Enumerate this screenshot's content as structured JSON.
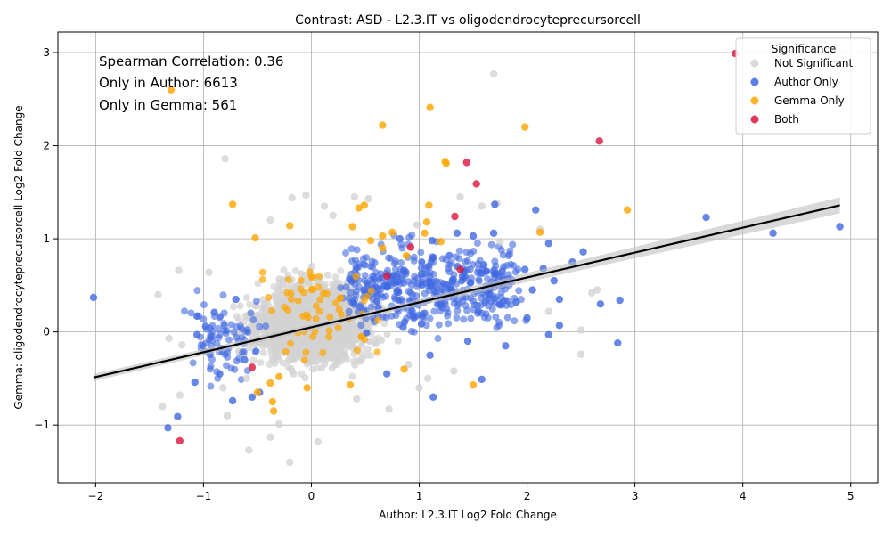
{
  "chart_data": {
    "type": "scatter",
    "title": "Contrast: ASD - L2.3.IT vs oligodendrocyteprecursorcell",
    "xlabel": "Author: L2.3.IT Log2 Fold Change",
    "ylabel": "Gemma: oligodendrocyteprecursorcell Log2 Fold Change",
    "xlim": [
      -2.35,
      5.25
    ],
    "ylim": [
      -1.62,
      3.22
    ],
    "xticks": [
      -2,
      -1,
      0,
      1,
      2,
      3,
      4,
      5
    ],
    "yticks": [
      -1,
      0,
      1,
      2,
      3
    ],
    "xtick_labels": [
      "−2",
      "−1",
      "0",
      "1",
      "2",
      "3",
      "4",
      "5"
    ],
    "ytick_labels": [
      "−1",
      "0",
      "1",
      "2",
      "3"
    ],
    "grid": true,
    "annotations": {
      "spearman": "Spearman Correlation: 0.36",
      "only_author": "Only in Author: 6613",
      "only_gemma": "Only in Gemma: 561"
    },
    "legend": {
      "title": "Significance",
      "placement": "top-right",
      "entries": [
        {
          "label": "Not Significant",
          "color": "#d3d3d3"
        },
        {
          "label": "Author Only",
          "color": "#4169e1"
        },
        {
          "label": "Gemma Only",
          "color": "#ffa500"
        },
        {
          "label": "Both",
          "color": "#dc143c"
        }
      ]
    },
    "regression": {
      "x": [
        -2.02,
        4.9
      ],
      "y": [
        -0.49,
        1.36
      ],
      "color": "#000000"
    },
    "series": [
      {
        "name": "Not Significant",
        "color": "#d3d3d3",
        "points": [
          [
            1.69,
            2.77
          ],
          [
            -0.8,
            1.86
          ],
          [
            -0.05,
            1.47
          ],
          [
            0.4,
            1.45
          ],
          [
            -0.18,
            1.44
          ],
          [
            0.53,
            1.43
          ],
          [
            1.38,
            1.45
          ],
          [
            0.12,
            1.35
          ],
          [
            1.58,
            1.35
          ],
          [
            -1.23,
            0.66
          ],
          [
            -0.95,
            0.64
          ],
          [
            -1.42,
            0.4
          ],
          [
            -1.38,
            -0.8
          ],
          [
            -1.32,
            -0.07
          ],
          [
            -1.2,
            -0.14
          ],
          [
            -1.22,
            -0.68
          ],
          [
            -0.82,
            -0.6
          ],
          [
            -0.78,
            -0.9
          ],
          [
            -0.58,
            -1.27
          ],
          [
            -0.38,
            -1.13
          ],
          [
            -0.2,
            -1.4
          ],
          [
            0.06,
            -1.18
          ],
          [
            0.72,
            -0.83
          ],
          [
            1.08,
            -0.5
          ],
          [
            2.5,
            -0.24
          ],
          [
            2.5,
            0.02
          ],
          [
            2.6,
            0.42
          ],
          [
            2.65,
            0.45
          ],
          [
            2.2,
            0.22
          ],
          [
            1.0,
            -0.6
          ],
          [
            -0.3,
            -0.99
          ],
          [
            0.42,
            -0.72
          ],
          [
            1.32,
            -0.42
          ],
          [
            0.9,
            -0.35
          ],
          [
            -0.6,
            -0.5
          ],
          [
            1.75,
            0.97
          ],
          [
            2.12,
            1.1
          ],
          [
            0.2,
            1.25
          ],
          [
            -0.38,
            1.2
          ],
          [
            0.98,
            1.15
          ],
          [
            1.72,
            1.38
          ]
        ]
      },
      {
        "name": "Author Only",
        "color": "#4169e1",
        "points": [
          [
            -2.02,
            0.37
          ],
          [
            -1.33,
            -1.03
          ],
          [
            -1.24,
            -0.91
          ],
          [
            -1.08,
            -0.54
          ],
          [
            -1.06,
            0.17
          ],
          [
            -1.06,
            -0.03
          ],
          [
            -0.98,
            0.06
          ],
          [
            -0.94,
            -0.24
          ],
          [
            -0.9,
            0.21
          ],
          [
            -0.73,
            -0.74
          ],
          [
            -0.55,
            -0.7
          ],
          [
            -0.48,
            -0.65
          ],
          [
            1.13,
            -0.7
          ],
          [
            1.58,
            -0.51
          ],
          [
            2.2,
            -0.03
          ],
          [
            2.84,
            -0.12
          ],
          [
            2.68,
            0.3
          ],
          [
            2.86,
            0.34
          ],
          [
            2.3,
            0.07
          ],
          [
            3.66,
            1.23
          ],
          [
            4.28,
            1.06
          ],
          [
            4.9,
            1.13
          ],
          [
            2.08,
            1.31
          ],
          [
            2.52,
            0.86
          ],
          [
            2.42,
            0.75
          ],
          [
            2.2,
            0.95
          ],
          [
            1.7,
            1.37
          ],
          [
            1.69,
            1.06
          ],
          [
            1.35,
            1.06
          ],
          [
            1.12,
            0.98
          ],
          [
            1.5,
            1.03
          ],
          [
            0.82,
            1.0
          ],
          [
            2.15,
            0.68
          ],
          [
            1.98,
            0.67
          ],
          [
            1.85,
            0.55
          ],
          [
            1.6,
            0.72
          ],
          [
            1.4,
            0.6
          ],
          [
            1.3,
            0.45
          ],
          [
            1.2,
            0.3
          ],
          [
            1.05,
            0.2
          ],
          [
            0.95,
            0.15
          ],
          [
            0.85,
            0.05
          ],
          [
            1.55,
            0.22
          ],
          [
            1.65,
            0.4
          ],
          [
            1.75,
            0.3
          ],
          [
            2.05,
            0.45
          ],
          [
            2.3,
            0.35
          ],
          [
            2.0,
            0.15
          ],
          [
            1.8,
            -0.15
          ],
          [
            1.45,
            -0.1
          ],
          [
            1.1,
            -0.25
          ],
          [
            0.7,
            -0.45
          ],
          [
            -0.7,
            0.35
          ],
          [
            -0.62,
            -0.3
          ],
          [
            -0.85,
            -0.45
          ],
          [
            1.9,
            0.32
          ],
          [
            2.25,
            0.55
          ],
          [
            1.62,
            0.65
          ],
          [
            1.28,
            0.82
          ],
          [
            1.02,
            0.62
          ]
        ]
      },
      {
        "name": "Gemma Only",
        "color": "#ffa500",
        "points": [
          [
            -1.3,
            2.6
          ],
          [
            0.66,
            2.22
          ],
          [
            1.1,
            2.41
          ],
          [
            1.98,
            2.2
          ],
          [
            1.24,
            1.83
          ],
          [
            1.25,
            1.81
          ],
          [
            2.93,
            1.31
          ],
          [
            -0.73,
            1.37
          ],
          [
            0.44,
            1.33
          ],
          [
            0.49,
            1.36
          ],
          [
            0.38,
            1.13
          ],
          [
            1.09,
            1.36
          ],
          [
            1.07,
            1.18
          ],
          [
            1.2,
            0.97
          ],
          [
            2.12,
            1.07
          ],
          [
            0.75,
            1.07
          ],
          [
            0.66,
            1.03
          ],
          [
            1.05,
            1.06
          ],
          [
            -0.2,
            1.14
          ],
          [
            -0.52,
            1.01
          ],
          [
            0.55,
            0.98
          ],
          [
            0.88,
            0.82
          ],
          [
            0.66,
            0.9
          ],
          [
            1.5,
            -0.57
          ],
          [
            0.86,
            -0.4
          ],
          [
            0.36,
            -0.57
          ],
          [
            -0.04,
            -0.6
          ],
          [
            -0.35,
            -0.85
          ],
          [
            -0.36,
            -0.75
          ],
          [
            -0.5,
            -0.65
          ],
          [
            -0.38,
            -0.55
          ],
          [
            -0.3,
            -0.48
          ]
        ]
      },
      {
        "name": "Both",
        "color": "#dc143c",
        "points": [
          [
            3.93,
            2.99
          ],
          [
            2.67,
            2.05
          ],
          [
            1.44,
            1.82
          ],
          [
            1.53,
            1.59
          ],
          [
            1.33,
            1.24
          ],
          [
            -1.22,
            -1.17
          ],
          [
            0.92,
            0.91
          ],
          [
            1.38,
            0.67
          ],
          [
            0.7,
            0.6
          ],
          [
            -0.55,
            -0.38
          ]
        ]
      }
    ]
  }
}
